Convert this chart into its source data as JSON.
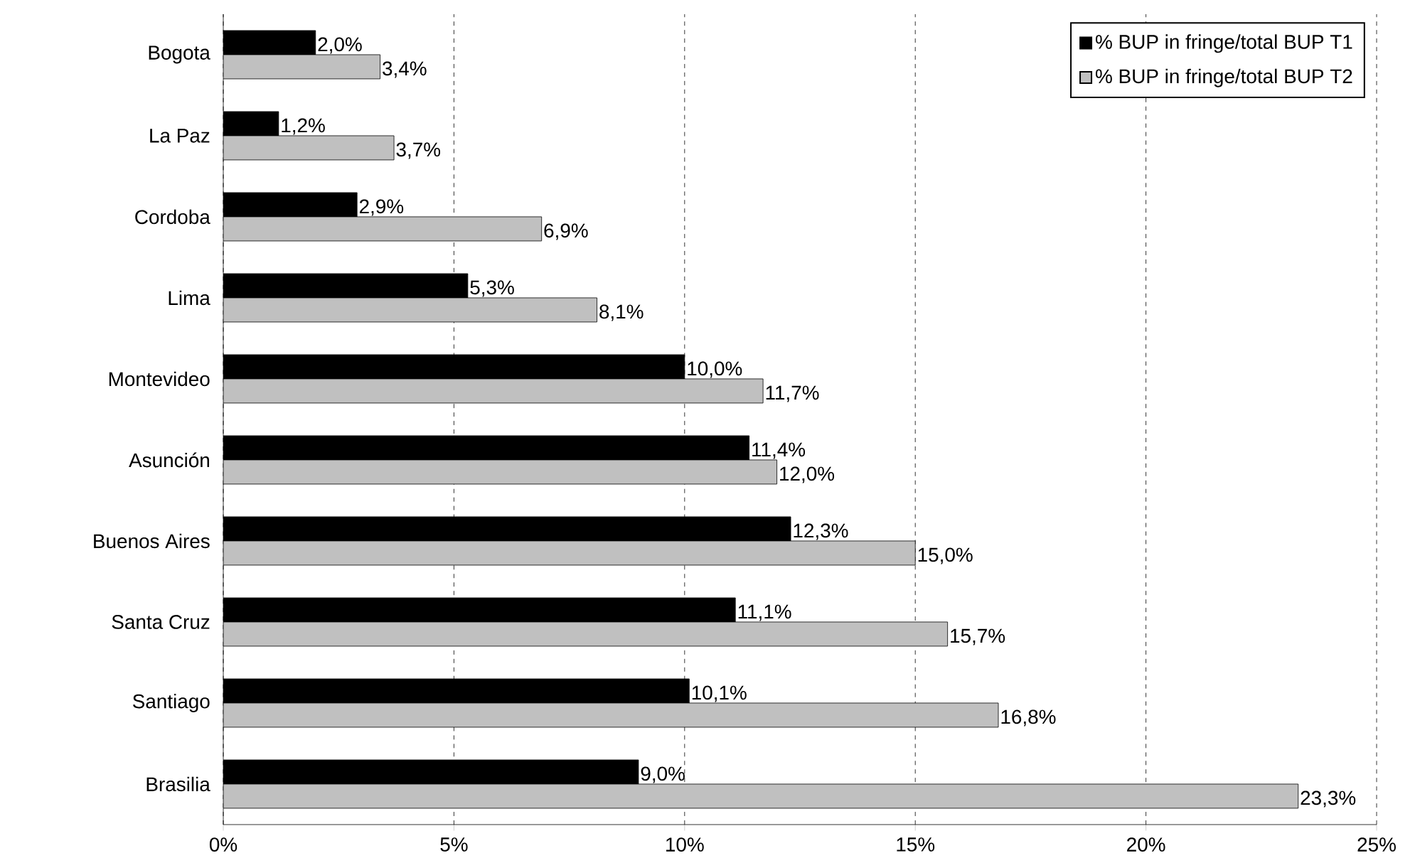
{
  "chart_data": {
    "type": "bar",
    "orientation": "horizontal",
    "categories": [
      "Bogota",
      "La Paz",
      "Cordoba",
      "Lima",
      "Montevideo",
      "Asunción",
      "Buenos Aires",
      "Santa Cruz",
      "Santiago",
      "Brasilia"
    ],
    "series": [
      {
        "name": "% BUP in fringe/total BUP T1",
        "color": "#000000",
        "values": [
          2.0,
          1.2,
          2.9,
          5.3,
          10.0,
          11.4,
          12.3,
          11.1,
          10.1,
          9.0
        ],
        "value_labels": [
          "2,0%",
          "1,2%",
          "2,9%",
          "5,3%",
          "10,0%",
          "11,4%",
          "12,3%",
          "11,1%",
          "10,1%",
          "9,0%"
        ]
      },
      {
        "name": "% BUP in fringe/total BUP T2",
        "color": "#c0c0c0",
        "values": [
          3.4,
          3.7,
          6.9,
          8.1,
          11.7,
          12.0,
          15.0,
          15.7,
          16.8,
          23.3
        ],
        "value_labels": [
          "3,4%",
          "3,7%",
          "6,9%",
          "8,1%",
          "11,7%",
          "12,0%",
          "15,0%",
          "15,7%",
          "16,8%",
          "23,3%"
        ]
      }
    ],
    "xlim": [
      0,
      25
    ],
    "xticks": [
      {
        "value": 0,
        "label": "0%"
      },
      {
        "value": 5,
        "label": "5%"
      },
      {
        "value": 10,
        "label": "10%"
      },
      {
        "value": 15,
        "label": "15%"
      },
      {
        "value": 20,
        "label": "20%"
      },
      {
        "value": 25,
        "label": "25%"
      }
    ],
    "grid": "x",
    "legend": "top right"
  }
}
